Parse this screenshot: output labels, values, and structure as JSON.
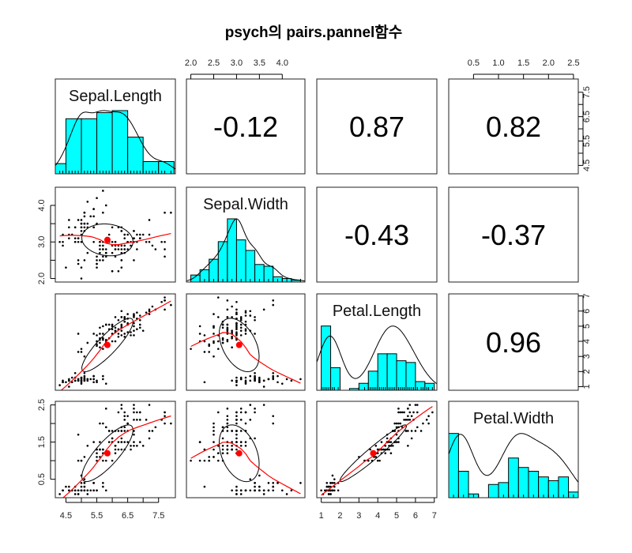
{
  "chart_data": {
    "type": "scatter",
    "title": "psych의 pairs.pannel함수",
    "variables": [
      {
        "name": "Sepal.Length",
        "hist_breaks": [
          4.0,
          4.5,
          5.0,
          5.5,
          6.0,
          6.5,
          7.0,
          7.5,
          8.0
        ],
        "values": [
          5.1,
          4.9,
          4.7,
          4.6,
          5.0,
          5.4,
          4.6,
          5.0,
          4.4,
          4.9,
          5.4,
          4.8,
          4.8,
          4.3,
          5.8,
          5.7,
          5.4,
          5.1,
          5.7,
          5.1,
          5.4,
          5.1,
          4.6,
          5.1,
          4.8,
          5.0,
          5.0,
          5.2,
          5.2,
          4.7,
          4.8,
          5.4,
          5.2,
          5.5,
          4.9,
          5.0,
          5.5,
          4.9,
          4.4,
          5.1,
          5.0,
          4.5,
          4.4,
          5.0,
          5.1,
          4.8,
          5.1,
          4.6,
          5.3,
          5.0,
          7.0,
          6.4,
          6.9,
          5.5,
          6.5,
          5.7,
          6.3,
          4.9,
          6.6,
          5.2,
          5.0,
          5.9,
          6.0,
          6.1,
          5.6,
          6.7,
          5.6,
          5.8,
          6.2,
          5.6,
          5.9,
          6.1,
          6.3,
          6.1,
          6.4,
          6.6,
          6.8,
          6.7,
          6.0,
          5.7,
          5.5,
          5.5,
          5.8,
          6.0,
          5.4,
          6.0,
          6.7,
          6.3,
          5.6,
          5.5,
          5.5,
          6.1,
          5.8,
          5.0,
          5.6,
          5.7,
          5.7,
          6.2,
          5.1,
          5.7,
          6.3,
          5.8,
          7.1,
          6.3,
          6.5,
          7.6,
          4.9,
          7.3,
          6.7,
          7.2,
          6.5,
          6.4,
          6.8,
          5.7,
          5.8,
          6.4,
          6.5,
          7.7,
          7.7,
          6.0,
          6.9,
          5.6,
          7.7,
          6.3,
          6.7,
          7.2,
          6.2,
          6.1,
          6.4,
          7.2,
          7.4,
          7.9,
          6.4,
          6.3,
          6.1,
          7.7,
          6.3,
          6.4,
          6.0,
          6.9,
          6.7,
          6.9,
          5.8,
          6.8,
          6.7,
          6.7,
          6.3,
          6.5,
          6.2,
          5.9
        ]
      },
      {
        "name": "Sepal.Width",
        "hist_breaks": [
          2.0,
          2.2,
          2.4,
          2.6,
          2.8,
          3.0,
          3.2,
          3.4,
          3.6,
          3.8,
          4.0,
          4.2,
          4.4
        ],
        "values": [
          3.5,
          3.0,
          3.2,
          3.1,
          3.6,
          3.9,
          3.4,
          3.4,
          2.9,
          3.1,
          3.7,
          3.4,
          3.0,
          3.0,
          4.0,
          4.4,
          3.9,
          3.5,
          3.8,
          3.8,
          3.4,
          3.7,
          3.6,
          3.3,
          3.4,
          3.0,
          3.4,
          3.5,
          3.4,
          3.2,
          3.1,
          3.4,
          4.1,
          4.2,
          3.1,
          3.2,
          3.5,
          3.6,
          3.0,
          3.4,
          3.5,
          2.3,
          3.2,
          3.5,
          3.8,
          3.0,
          3.8,
          3.2,
          3.7,
          3.3,
          3.2,
          3.2,
          3.1,
          2.3,
          2.8,
          2.8,
          3.3,
          2.4,
          2.9,
          2.7,
          2.0,
          3.0,
          2.2,
          2.9,
          2.9,
          3.1,
          3.0,
          2.7,
          2.2,
          2.5,
          3.2,
          2.8,
          2.5,
          2.8,
          2.9,
          3.0,
          2.8,
          3.0,
          2.9,
          2.6,
          2.4,
          2.4,
          2.7,
          2.7,
          3.0,
          3.4,
          3.1,
          2.3,
          3.0,
          2.5,
          2.6,
          3.0,
          2.6,
          2.3,
          2.7,
          3.0,
          2.9,
          2.9,
          2.5,
          2.8,
          3.3,
          2.7,
          3.0,
          2.9,
          3.0,
          3.0,
          2.5,
          2.9,
          2.5,
          3.6,
          3.2,
          2.7,
          3.0,
          2.5,
          2.8,
          3.2,
          3.0,
          3.8,
          2.6,
          2.2,
          3.2,
          2.8,
          2.8,
          2.7,
          3.3,
          3.2,
          2.8,
          3.0,
          2.8,
          3.0,
          2.8,
          3.8,
          2.8,
          2.8,
          2.6,
          3.0,
          3.4,
          3.1,
          3.0,
          3.1,
          3.1,
          3.1,
          2.7,
          3.2,
          3.3,
          3.0,
          2.5,
          3.0,
          3.4,
          3.0
        ]
      },
      {
        "name": "Petal.Length",
        "hist_breaks": [
          1.0,
          1.5,
          2.0,
          2.5,
          3.0,
          3.5,
          4.0,
          4.5,
          5.0,
          5.5,
          6.0,
          6.5,
          7.0
        ],
        "values": [
          1.4,
          1.4,
          1.3,
          1.5,
          1.4,
          1.7,
          1.4,
          1.5,
          1.4,
          1.5,
          1.5,
          1.6,
          1.4,
          1.1,
          1.2,
          1.5,
          1.3,
          1.4,
          1.7,
          1.5,
          1.7,
          1.5,
          1.0,
          1.7,
          1.9,
          1.6,
          1.6,
          1.5,
          1.4,
          1.6,
          1.6,
          1.5,
          1.5,
          1.4,
          1.5,
          1.2,
          1.3,
          1.4,
          1.3,
          1.5,
          1.3,
          1.3,
          1.3,
          1.6,
          1.9,
          1.4,
          1.6,
          1.4,
          1.5,
          1.4,
          4.7,
          4.5,
          4.9,
          4.0,
          4.6,
          4.5,
          4.7,
          3.3,
          4.6,
          3.9,
          3.5,
          4.2,
          4.0,
          4.7,
          3.6,
          4.4,
          4.5,
          4.1,
          4.5,
          3.9,
          4.8,
          4.0,
          4.9,
          4.7,
          4.3,
          4.4,
          4.8,
          5.0,
          4.5,
          3.5,
          3.8,
          3.7,
          3.9,
          5.1,
          4.5,
          4.5,
          4.7,
          4.4,
          4.1,
          4.0,
          4.4,
          4.6,
          4.0,
          3.3,
          4.2,
          4.2,
          4.2,
          4.3,
          3.0,
          4.1,
          6.0,
          5.1,
          5.9,
          5.6,
          5.8,
          6.6,
          4.5,
          6.3,
          5.8,
          6.1,
          5.1,
          5.3,
          5.5,
          5.0,
          5.1,
          5.3,
          5.5,
          6.7,
          6.9,
          5.0,
          5.7,
          4.9,
          6.7,
          4.9,
          5.7,
          6.0,
          4.8,
          4.9,
          5.6,
          5.8,
          6.1,
          6.4,
          5.6,
          5.1,
          5.6,
          6.1,
          5.6,
          5.5,
          4.8,
          5.4,
          5.6,
          5.1,
          5.1,
          5.9,
          5.7,
          5.2,
          5.0,
          5.2,
          5.4,
          5.1
        ]
      },
      {
        "name": "Petal.Width",
        "hist_breaks": [
          0.0,
          0.2,
          0.4,
          0.6,
          0.8,
          1.0,
          1.2,
          1.4,
          1.6,
          1.8,
          2.0,
          2.2,
          2.4,
          2.6
        ],
        "values": [
          0.2,
          0.2,
          0.2,
          0.2,
          0.2,
          0.4,
          0.3,
          0.2,
          0.2,
          0.1,
          0.2,
          0.2,
          0.1,
          0.1,
          0.2,
          0.4,
          0.4,
          0.3,
          0.3,
          0.3,
          0.2,
          0.4,
          0.2,
          0.5,
          0.2,
          0.2,
          0.4,
          0.2,
          0.2,
          0.2,
          0.2,
          0.4,
          0.1,
          0.2,
          0.2,
          0.2,
          0.2,
          0.1,
          0.2,
          0.2,
          0.3,
          0.3,
          0.2,
          0.6,
          0.4,
          0.3,
          0.2,
          0.2,
          0.2,
          0.2,
          1.4,
          1.5,
          1.5,
          1.3,
          1.5,
          1.3,
          1.6,
          1.0,
          1.3,
          1.4,
          1.0,
          1.5,
          1.0,
          1.4,
          1.3,
          1.4,
          1.5,
          1.0,
          1.5,
          1.1,
          1.8,
          1.3,
          1.5,
          1.2,
          1.3,
          1.4,
          1.4,
          1.7,
          1.5,
          1.0,
          1.1,
          1.0,
          1.2,
          1.6,
          1.5,
          1.6,
          1.5,
          1.3,
          1.3,
          1.3,
          1.2,
          1.4,
          1.2,
          1.0,
          1.3,
          1.2,
          1.3,
          1.3,
          1.1,
          1.3,
          2.5,
          1.9,
          2.1,
          1.8,
          2.2,
          2.1,
          1.7,
          1.8,
          1.8,
          2.5,
          2.0,
          1.9,
          2.1,
          2.0,
          2.4,
          2.3,
          1.8,
          2.2,
          2.3,
          1.5,
          2.3,
          2.0,
          2.0,
          1.8,
          2.1,
          1.8,
          1.8,
          1.8,
          2.1,
          1.6,
          1.9,
          2.0,
          2.2,
          1.5,
          1.4,
          2.3,
          2.4,
          1.8,
          1.8,
          2.1,
          2.4,
          2.3,
          1.9,
          2.3,
          2.5,
          2.3,
          1.9,
          2.0,
          2.3,
          1.8
        ]
      }
    ],
    "correlations": [
      {
        "row": "Sepal.Length",
        "col": "Sepal.Width",
        "r": -0.12
      },
      {
        "row": "Sepal.Length",
        "col": "Petal.Length",
        "r": 0.87
      },
      {
        "row": "Sepal.Length",
        "col": "Petal.Width",
        "r": 0.82
      },
      {
        "row": "Sepal.Width",
        "col": "Petal.Length",
        "r": -0.43
      },
      {
        "row": "Sepal.Width",
        "col": "Petal.Width",
        "r": -0.37
      },
      {
        "row": "Petal.Length",
        "col": "Petal.Width",
        "r": 0.96
      }
    ],
    "axes": [
      {
        "side": "bottom",
        "variable": 0,
        "ticks": [
          4.5,
          5.0,
          5.5,
          6.0,
          6.5,
          7.0,
          7.5
        ],
        "labels": [
          "4.5",
          "",
          "5.5",
          "",
          "6.5",
          "",
          "7.5"
        ]
      },
      {
        "side": "top",
        "variable": 1,
        "ticks": [
          2.0,
          2.5,
          3.0,
          3.5,
          4.0
        ],
        "labels": [
          "2.0",
          "2.5",
          "3.0",
          "3.5",
          "4.0"
        ]
      },
      {
        "side": "bottom",
        "variable": 2,
        "ticks": [
          1,
          2,
          3,
          4,
          5,
          6,
          7
        ],
        "labels": [
          "1",
          "2",
          "3",
          "4",
          "5",
          "6",
          "7"
        ]
      },
      {
        "side": "top",
        "variable": 3,
        "ticks": [
          0.5,
          1.0,
          1.5,
          2.0,
          2.5
        ],
        "labels": [
          "0.5",
          "1.0",
          "1.5",
          "2.0",
          "2.5"
        ]
      },
      {
        "side": "right",
        "variable": 0,
        "ticks": [
          4.5,
          5.0,
          5.5,
          6.0,
          6.5,
          7.0,
          7.5
        ],
        "labels": [
          "4.5",
          "",
          "5.5",
          "",
          "6.5",
          "",
          "7.5"
        ]
      },
      {
        "side": "left",
        "variable": 1,
        "ticks": [
          2.0,
          2.5,
          3.0,
          3.5,
          4.0
        ],
        "labels": [
          "2.0",
          "",
          "3.0",
          "",
          "4.0"
        ]
      },
      {
        "side": "right",
        "variable": 2,
        "ticks": [
          1,
          2,
          3,
          4,
          5,
          6,
          7
        ],
        "labels": [
          "1",
          "2",
          "3",
          "4",
          "5",
          "6",
          "7"
        ]
      },
      {
        "side": "left",
        "variable": 3,
        "ticks": [
          0.5,
          1.0,
          1.5,
          2.0,
          2.5
        ],
        "labels": [
          "0.5",
          "",
          "1.5",
          "",
          "2.5"
        ]
      }
    ],
    "colors": {
      "histogram": "#00FFFF",
      "smoother": "#FF0000",
      "mean_point": "#FF0000",
      "points": "#000000",
      "ellipse": "#000000"
    }
  }
}
